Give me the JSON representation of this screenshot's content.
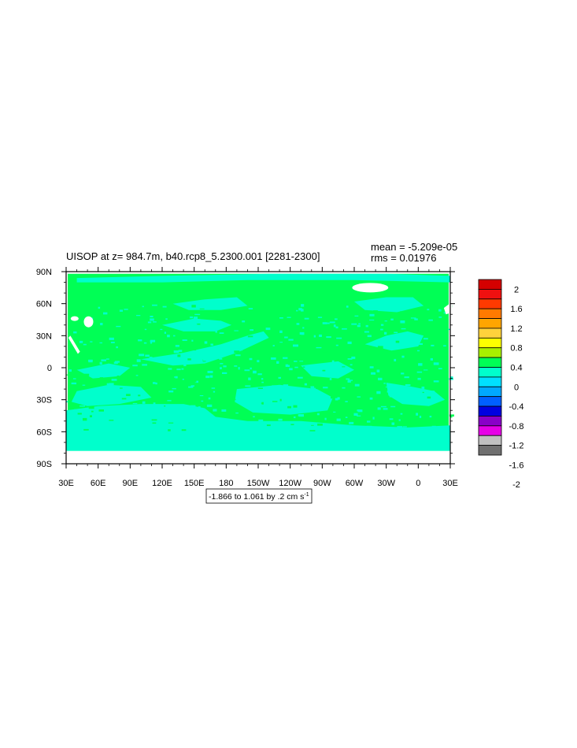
{
  "chart_data": {
    "type": "heatmap",
    "title": "UISOP at z= 984.7m, b40.rcp8_5.2300.001 [2281-2300]",
    "stats": {
      "mean": "mean = -5.209e-05",
      "rms": "rms = 0.01976"
    },
    "subtitle_box": "-1.866 to 1.061 by .2 cm s",
    "subtitle_box_sup": "-1",
    "xaxis": {
      "ticks": [
        "30E",
        "60E",
        "90E",
        "120E",
        "150E",
        "180",
        "150W",
        "120W",
        "90W",
        "60W",
        "30W",
        "0",
        "30E"
      ],
      "range_deg_east": [
        30,
        390
      ]
    },
    "yaxis": {
      "ticks": [
        "90N",
        "60N",
        "30N",
        "0",
        "30S",
        "60S",
        "90S"
      ],
      "range_deg_north": [
        90,
        -90
      ]
    },
    "colorbar": {
      "labels": [
        "2",
        "1.6",
        "1.2",
        "0.8",
        "0.4",
        "0",
        "-0.4",
        "-0.8",
        "-1.2",
        "-1.6",
        "-2"
      ],
      "colors_top_to_bottom": [
        "#d40000",
        "#f01010",
        "#ff3a00",
        "#ff7a00",
        "#ffa500",
        "#ffd23c",
        "#ffff00",
        "#a8f000",
        "#00ff55",
        "#00ffcc",
        "#00e0ff",
        "#00a8ff",
        "#0060ff",
        "#0000e0",
        "#8a00c8",
        "#e600e6",
        "#c0c0c0",
        "#707070"
      ]
    },
    "field_colors": {
      "positive_near_zero": "#00ff55",
      "negative_near_zero": "#00ffcc",
      "missing": "#ffffff"
    },
    "grid": false
  }
}
